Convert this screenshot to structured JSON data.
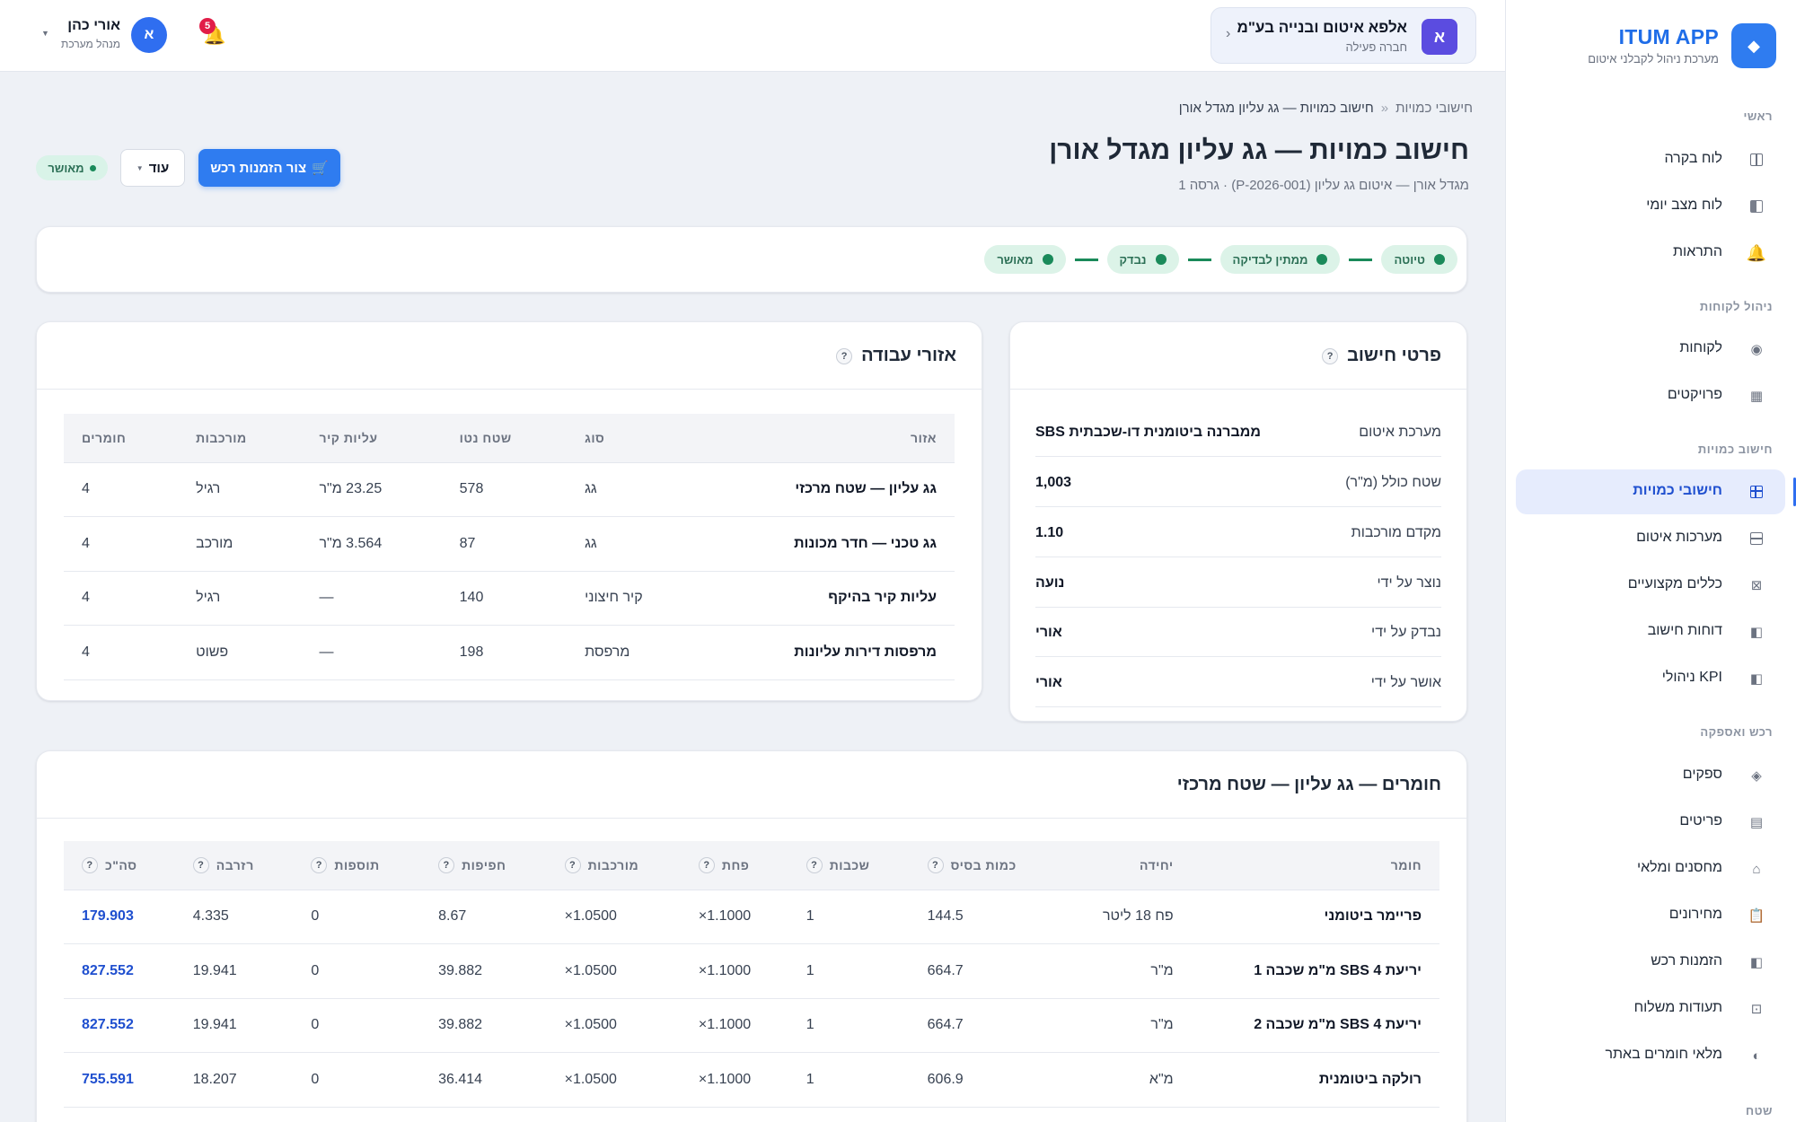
{
  "sidebar": {
    "brand_name": "ITUM APP",
    "brand_sub": "מערכת ניהול לקבלני איטום",
    "groups": [
      {
        "title": "ראשי"
      },
      {
        "title": "ניהול לקוחות"
      },
      {
        "title": "חישוב כמויות"
      },
      {
        "title": "רכש ואספקה"
      },
      {
        "title": "שטח"
      }
    ],
    "items": [
      {
        "label": "לוח בקרה",
        "icon": "dashboard-icon"
      },
      {
        "label": "לוח מצב יומי",
        "icon": "daily-board-icon"
      },
      {
        "label": "התראות",
        "icon": "bell-icon"
      },
      {
        "label": "לקוחות",
        "icon": "customers-icon"
      },
      {
        "label": "פרויקטים",
        "icon": "projects-icon"
      },
      {
        "label": "חישובי כמויות",
        "icon": "calculator-icon",
        "active": true
      },
      {
        "label": "מערכות איטום",
        "icon": "systems-icon"
      },
      {
        "label": "כללים מקצועיים",
        "icon": "rules-icon"
      },
      {
        "label": "דוחות חישוב",
        "icon": "reports-icon"
      },
      {
        "label": "KPI ניהולי",
        "icon": "kpi-icon"
      },
      {
        "label": "ספקים",
        "icon": "suppliers-icon"
      },
      {
        "label": "פריטים",
        "icon": "items-icon"
      },
      {
        "label": "מחסנים ומלאי",
        "icon": "warehouse-icon"
      },
      {
        "label": "מחירונים",
        "icon": "pricelist-icon"
      },
      {
        "label": "הזמנות רכש",
        "icon": "purchase-orders-icon"
      },
      {
        "label": "תעודות משלוח",
        "icon": "delivery-notes-icon"
      },
      {
        "label": "מלאי חומרים באתר",
        "icon": "site-stock-icon"
      }
    ]
  },
  "topbar": {
    "company_initial": "א",
    "company_name": "אלפא איטום ובנייה בע\"מ",
    "company_status": "חברה פעילה",
    "notifications_count": "5",
    "user_initial": "א",
    "user_name": "אורי כהן",
    "user_role": "מנהל מערכת"
  },
  "page": {
    "breadcrumb_root": "חישובי כמויות",
    "breadcrumb_sep": "«",
    "breadcrumb_current": "חישוב כמויות — גג עליון מגדל אורן",
    "title": "חישוב כמויות — גג עליון מגדל אורן",
    "subtitle": "מגדל אורן — איטום גג עליון (P-2026-001) · גרסה 1",
    "primary_button": "צור הזמנות רכש",
    "more_button": "עוד",
    "status": "מאושר"
  },
  "workflow": {
    "steps": [
      "טיוטה",
      "ממתין לבדיקה",
      "נבדק",
      "מאושר"
    ]
  },
  "details": {
    "title": "פרטי חישוב",
    "rows": [
      {
        "key": "מערכת איטום",
        "value": "ממברנה ביטומנית דו-שכבתית SBS"
      },
      {
        "key": "שטח כולל (מ\"ר)",
        "value": "1,003"
      },
      {
        "key": "מקדם מורכבות",
        "value": "1.10"
      },
      {
        "key": "נוצר על ידי",
        "value": "נועה"
      },
      {
        "key": "נבדק על ידי",
        "value": "אורי"
      },
      {
        "key": "אושר על ידי",
        "value": "אורי"
      }
    ]
  },
  "zones": {
    "title": "אזורי עבודה",
    "columns": [
      "אזור",
      "סוג",
      "שטח נטו",
      "עליות קיר",
      "מורכבות",
      "חומרים"
    ],
    "rows": [
      [
        "גג עליון — שטח מרכזי",
        "גג",
        "578",
        "23.25 מ\"ר",
        "רגיל",
        "4"
      ],
      [
        "גג טכני — חדר מכונות",
        "גג",
        "87",
        "3.564 מ\"ר",
        "מורכב",
        "4"
      ],
      [
        "עליות קיר בהיקף",
        "קיר חיצוני",
        "140",
        "—",
        "רגיל",
        "4"
      ],
      [
        "מרפסות דירות עליונות",
        "מרפסת",
        "198",
        "—",
        "פשוט",
        "4"
      ]
    ]
  },
  "materials": {
    "title": "חומרים — גג עליון — שטח מרכזי",
    "columns": [
      "חומר",
      "יחידה",
      "כמות בסיס",
      "שכבות",
      "פחת",
      "מורכבות",
      "חפיפות",
      "תוספות",
      "רזרבה",
      "סה\"כ"
    ],
    "rows": [
      [
        "פריימר ביטומני",
        "פח 18 ליטר",
        "144.5",
        "1",
        "×1.1000",
        "×1.0500",
        "8.67",
        "0",
        "4.335",
        "179.903"
      ],
      [
        "יריעת SBS 4 מ\"מ שכבה 1",
        "מ\"ר",
        "664.7",
        "1",
        "×1.1000",
        "×1.0500",
        "39.882",
        "0",
        "19.941",
        "827.552"
      ],
      [
        "יריעת SBS 4 מ\"מ שכבה 2",
        "מ\"ר",
        "664.7",
        "1",
        "×1.1000",
        "×1.0500",
        "39.882",
        "0",
        "19.941",
        "827.552"
      ],
      [
        "רולקה ביטומנית",
        "מ\"א",
        "606.9",
        "1",
        "×1.1000",
        "×1.0500",
        "36.414",
        "0",
        "18.207",
        "755.591"
      ]
    ]
  }
}
